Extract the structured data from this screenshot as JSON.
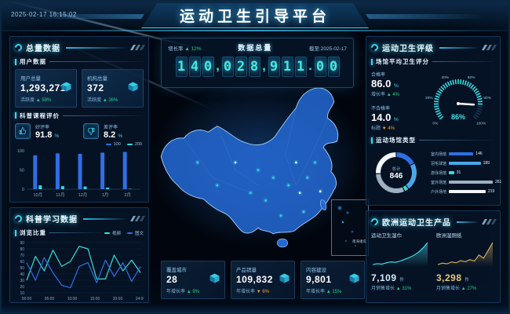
{
  "header": {
    "timestamp": "2025-02-17 16:15:02",
    "title": "运动卫生引导平台"
  },
  "left": {
    "section1_title": "总量数据",
    "user_data_title": "用户数据",
    "stat_cards": [
      {
        "label": "用户总量",
        "value": "1,293,271",
        "sub_label": "活跃度",
        "trend": "up",
        "arrow": "▲",
        "trend_value": "59%"
      },
      {
        "label": "机构总量",
        "value": "372",
        "sub_label": "活跃度",
        "trend": "up",
        "arrow": "▲",
        "trend_value": "36%"
      }
    ],
    "course_eval_title": "科普课程评价",
    "ratings": [
      {
        "icon": "thumb-up-icon",
        "label": "好评率",
        "value": "91.8",
        "unit": "%"
      },
      {
        "icon": "thumb-down-icon",
        "label": "差评率",
        "value": "8.2",
        "unit": "%"
      }
    ],
    "section2_title": "科普学习数据",
    "browse_title": "浏览比重"
  },
  "center": {
    "total_title": "数据总量",
    "growth_label": "增长率",
    "growth_arrow": "▲",
    "growth_value": "12%",
    "asof_label": "截至:2025-02-17",
    "total_value": "140,028,911.00",
    "map_inset_label": "南海诸岛",
    "bottom_cards": [
      {
        "label": "覆盖城市",
        "value": "28",
        "sub_label": "年增长率",
        "trend": "up",
        "arrow": "▲",
        "trend_value": "9%"
      },
      {
        "label": "产品销量",
        "value": "109,832",
        "sub_label": "年增长率",
        "trend": "down",
        "arrow": "▼",
        "trend_value": "6%"
      },
      {
        "label": "内容建设",
        "value": "9,801",
        "sub_label": "年增长率",
        "trend": "up",
        "arrow": "▲",
        "trend_value": "15%"
      }
    ]
  },
  "right": {
    "section1_title": "运动卫生评级",
    "venue_score_title": "场馆平均卫生评分",
    "pass": {
      "label": "合格率",
      "value": "86.0",
      "unit": "%",
      "sub_label": "增长率",
      "trend": "up",
      "arrow": "▲",
      "trend_value": "4%"
    },
    "fail": {
      "label": "不合格率",
      "value": "14.0",
      "unit": "%",
      "sub_label": "标题",
      "trend": "down",
      "arrow": "▼",
      "trend_value": "4%"
    },
    "venue_type_title": "运动场馆类型",
    "donut_center_label": "总计",
    "donut_center_value": "846",
    "section2_title": "欧洲运动卫生产品",
    "products": [
      {
        "label": "运动卫生湿巾",
        "value": "7,109",
        "unit": "件",
        "sub_label": "月销售增长",
        "trend": "up",
        "arrow": "▲",
        "trend_value": "31%"
      },
      {
        "label": "欧洲湿厕纸",
        "value": "3,298",
        "unit": "件",
        "sub_label": "月销售增长",
        "trend": "up",
        "arrow": "▲",
        "trend_value": "27%"
      }
    ]
  },
  "chart_data": [
    {
      "id": "course-bars",
      "type": "bar",
      "title": "科普课程评价",
      "categories": [
        "10月",
        "11月",
        "12月",
        "1月",
        "2月"
      ],
      "series": [
        {
          "name": "100",
          "color": "#2f6fe4",
          "values": [
            88,
            93,
            92,
            95,
            97
          ]
        },
        {
          "name": "200",
          "color": "#35d9e0",
          "values": [
            10,
            8,
            7,
            4,
            1
          ]
        }
      ],
      "ylim": [
        0,
        100
      ],
      "yticks": [
        0,
        50,
        100
      ],
      "legend_position": "top-right",
      "grid": false
    },
    {
      "id": "browse-line",
      "type": "line",
      "title": "浏览比重",
      "x": [
        "00:00",
        "05:00",
        "10:00",
        "15:00",
        "20:00",
        "24:00"
      ],
      "series": [
        {
          "name": "视频",
          "color": "#35e0d8",
          "values": [
            30,
            68,
            45,
            78,
            52,
            60,
            84,
            80,
            32,
            32,
            70,
            45,
            62,
            42
          ]
        },
        {
          "name": "图文",
          "color": "#2f6fe4",
          "values": [
            58,
            30,
            66,
            42,
            22,
            18,
            52,
            58,
            26,
            62,
            36,
            58,
            28,
            52
          ]
        }
      ],
      "ylim": [
        10,
        90
      ],
      "yticks": [
        10,
        20,
        30,
        40,
        50,
        60,
        70,
        80,
        90
      ],
      "legend_position": "top-right",
      "grid": true
    },
    {
      "id": "hygiene-gauge",
      "type": "gauge",
      "value": 86,
      "max": 100,
      "ticks": [
        "0%",
        "20%",
        "40%",
        "60%",
        "80%",
        "100%"
      ],
      "center_label": "86%"
    },
    {
      "id": "venue-donut",
      "type": "pie",
      "total": 846,
      "labels": [
        "室内场馆",
        "羽毛球馆",
        "游泳场馆",
        "室外场馆",
        "户外场地"
      ],
      "values": [
        146,
        189,
        31,
        261,
        219
      ],
      "colors": [
        "#2f6fe4",
        "#49a8e8",
        "#35e0d0",
        "#9fb0c0",
        "#f2f6fa"
      ]
    },
    {
      "id": "venue-bars",
      "type": "bar",
      "orientation": "horizontal",
      "categories": [
        "室内场馆",
        "羽毛球馆",
        "游泳场馆",
        "室外场馆",
        "户外场地"
      ],
      "values": [
        146,
        189,
        31,
        261,
        219
      ],
      "colors": [
        "#2f6fe4",
        "#49a8e8",
        "#35e0d0",
        "#9fb0c0",
        "#f2f6fa"
      ],
      "xmax": 261
    },
    {
      "id": "wipes-area",
      "type": "area",
      "color": "#49e3f2",
      "values": [
        22,
        24,
        23,
        26,
        28,
        27,
        30,
        34,
        38,
        43,
        50,
        60,
        72
      ]
    },
    {
      "id": "paper-area",
      "type": "area",
      "color": "#d8b36a",
      "values": [
        20,
        24,
        22,
        27,
        25,
        31,
        28,
        34,
        30,
        47,
        38,
        60,
        82
      ]
    }
  ]
}
